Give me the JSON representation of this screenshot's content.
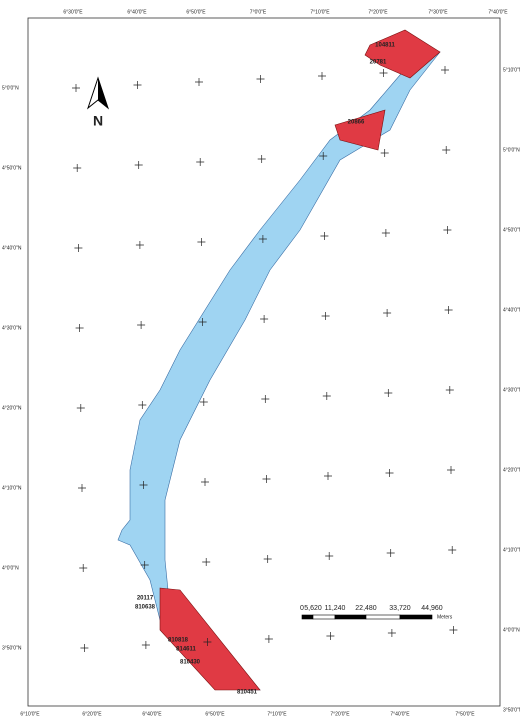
{
  "map": {
    "north": "N",
    "top_labels": [
      "6°30'0\"E",
      "6°40'0\"E",
      "6°50'0\"E",
      "7°0'0\"E",
      "7°10'0\"E",
      "7°20'0\"E",
      "7°30'0\"E",
      "7°40'0\"E"
    ],
    "bottom_labels": [
      "6°10'0\"E",
      "6°20'0\"E",
      "6°40'0\"E",
      "6°50'0\"E",
      "7°10'0\"E",
      "7°20'0\"E",
      "7°40'0\"E",
      "7°50'0\"E"
    ],
    "left_labels": [
      "5°0'0\"N",
      "4°50'0\"N",
      "4°40'0\"N",
      "4°30'0\"N",
      "4°20'0\"N",
      "4°10'0\"N",
      "4°0'0\"N",
      "3°50'0\"N"
    ],
    "right_labels": [
      "5°10'0\"N",
      "5°0'0\"N",
      "4°50'0\"N",
      "4°40'0\"N",
      "4°30'0\"N",
      "4°20'0\"N",
      "4°10'0\"N",
      "4°0'0\"N",
      "3°50'0\"N"
    ],
    "polygon_labels": [
      "104811",
      "20781",
      "20866",
      "20117",
      "810638",
      "810818",
      "814611",
      "810430",
      "810451"
    ],
    "scale_labels": [
      "0",
      "5,620",
      "11,240",
      "22,480",
      "33,720",
      "44,960"
    ],
    "scale_unit": "Meters"
  }
}
